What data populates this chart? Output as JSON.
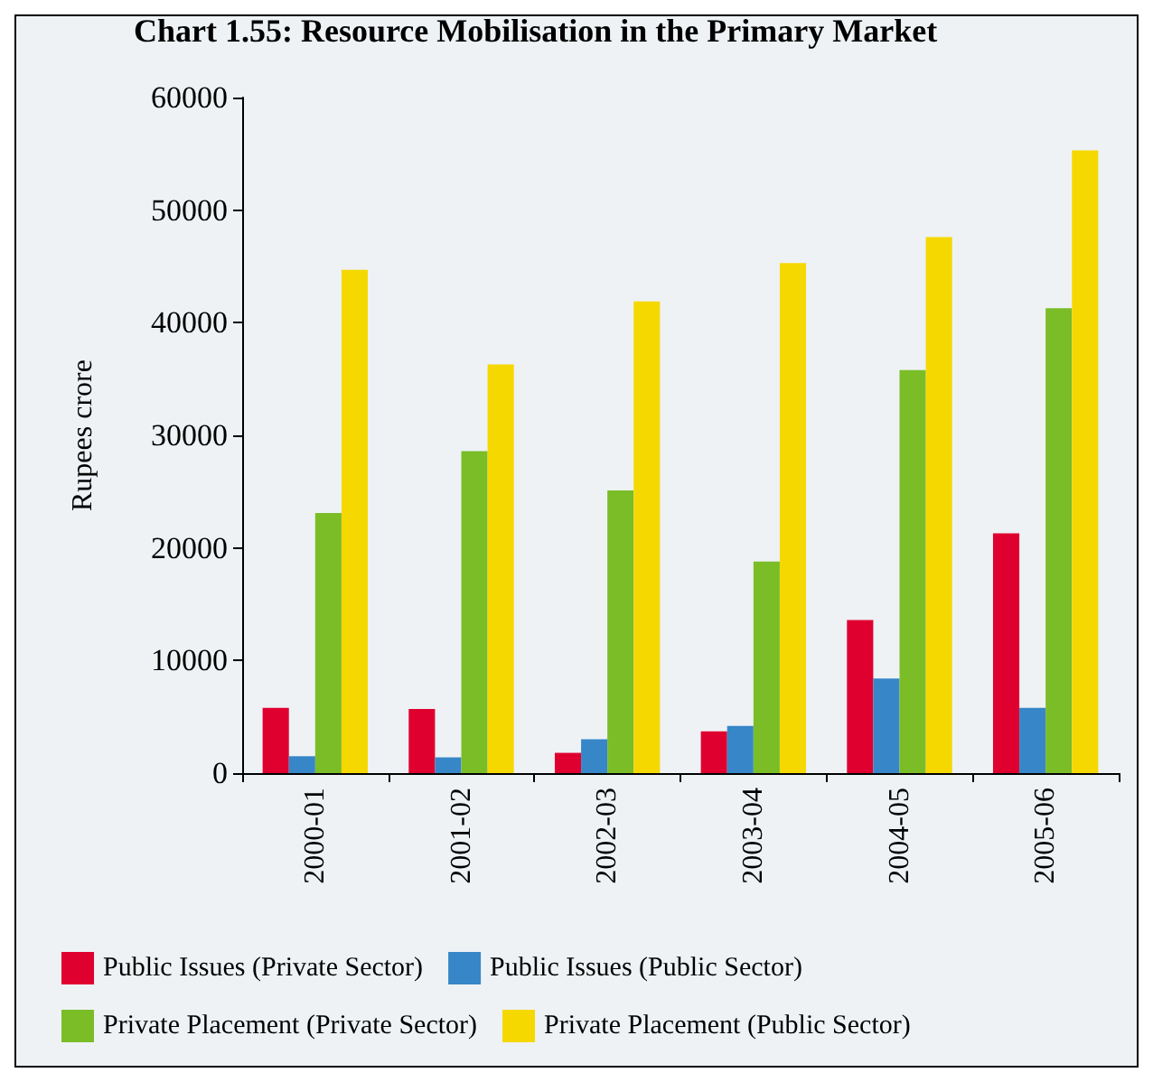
{
  "chart_data": {
    "type": "bar",
    "title": "Chart 1.55: Resource Mobilisation in the Primary Market",
    "ylabel": "Rupees crore",
    "categories": [
      "2000-01",
      "2001-02",
      "2002-03",
      "2003-04",
      "2004-05",
      "2005-06"
    ],
    "series": [
      {
        "name": "Public Issues (Private Sector)",
        "color": "#e0002f",
        "values": [
          5800,
          5700,
          1800,
          3700,
          13600,
          21300
        ]
      },
      {
        "name": "Public Issues (Public Sector)",
        "color": "#3686c8",
        "values": [
          1500,
          1400,
          3000,
          4200,
          8400,
          5800
        ]
      },
      {
        "name": "Private Placement (Private Sector)",
        "color": "#7abd27",
        "values": [
          23100,
          28600,
          25100,
          18800,
          35800,
          41300
        ]
      },
      {
        "name": "Private Placement (Public Sector)",
        "color": "#f5d800",
        "values": [
          44700,
          36300,
          41900,
          45300,
          47600,
          55300
        ]
      }
    ],
    "ylim": [
      0,
      60000
    ],
    "yticks": [
      0,
      10000,
      20000,
      30000,
      40000,
      50000,
      60000
    ],
    "grid": false,
    "legend": "bottom"
  }
}
